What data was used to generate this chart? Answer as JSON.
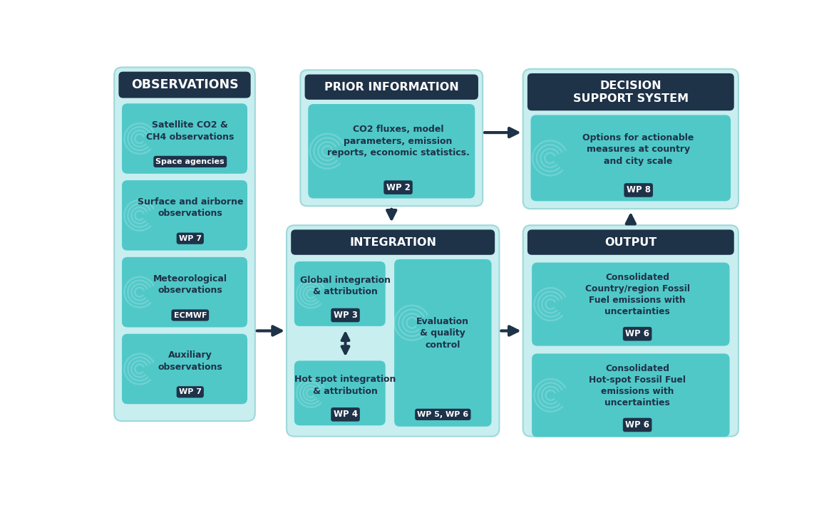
{
  "bg_color": "#ffffff",
  "dark_navy": "#1e3248",
  "light_teal_outer": "#c8eef0",
  "medium_teal": "#50c8c8",
  "arrow_color": "#1e3248",
  "white": "#ffffff",
  "obs_items": [
    {
      "text": "Satellite CO2 &\nCH4 observations",
      "badge": "Space agencies"
    },
    {
      "text": "Surface and airborne\nobservations",
      "badge": "WP 7"
    },
    {
      "text": "Meteorological\nobservations",
      "badge": "ECMWF"
    },
    {
      "text": "Auxiliary\nobservations",
      "badge": "WP 7"
    }
  ],
  "pi_text": "CO2 fluxes, model\nparameters, emission\nreports, economic statistics.",
  "pi_badge": "WP 2",
  "int_items": [
    {
      "text": "Global integration\n& attribution",
      "badge": "WP 3"
    },
    {
      "text": "Hot spot integration\n& attribution",
      "badge": "WP 4"
    }
  ],
  "ev_text": "Evaluation\n& quality\ncontrol",
  "ev_badge": "WP 5, WP 6",
  "out_items": [
    {
      "text": "Consolidated\nCountry/region Fossil\nFuel emissions with\nuncertainties",
      "badge": "WP 6"
    },
    {
      "text": "Consolidated\nHot-spot Fossil Fuel\nemissions with\nuncertainties",
      "badge": "WP 6"
    }
  ],
  "dss_text": "Options for actionable\nmeasures at country\nand city scale",
  "dss_badge": "WP 8"
}
